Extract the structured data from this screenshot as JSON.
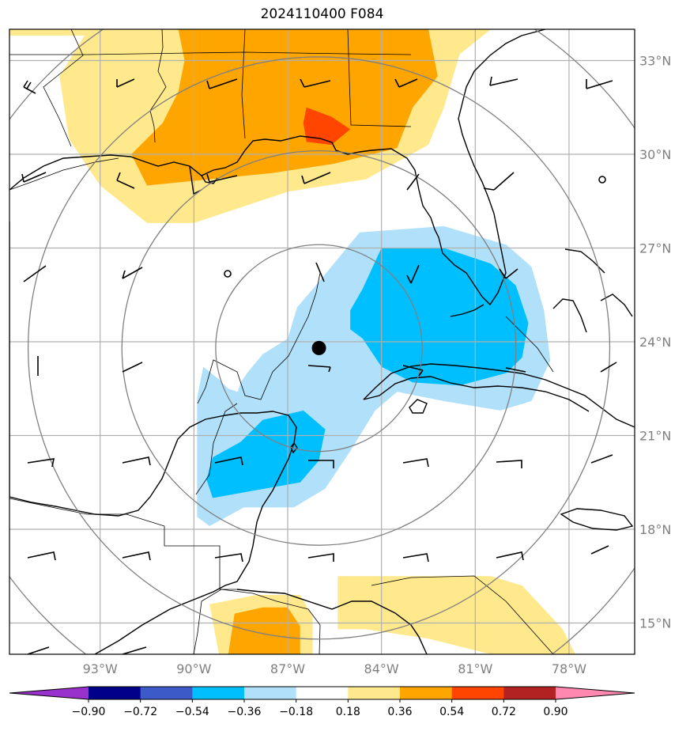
{
  "chart_data": {
    "type": "heatmap",
    "title": "2024110400 F084",
    "lon_ticks": [
      {
        "lon": -93,
        "label": "93°W"
      },
      {
        "lon": -90,
        "label": "90°W"
      },
      {
        "lon": -87,
        "label": "87°W"
      },
      {
        "lon": -84,
        "label": "84°W"
      },
      {
        "lon": -81,
        "label": "81°W"
      },
      {
        "lon": -78,
        "label": "78°W"
      }
    ],
    "lat_ticks": [
      {
        "lat": 33,
        "label": "33°N"
      },
      {
        "lat": 30,
        "label": "30°N"
      },
      {
        "lat": 27,
        "label": "27°N"
      },
      {
        "lat": 24,
        "label": "24°N"
      },
      {
        "lat": 21,
        "label": "21°N"
      },
      {
        "lat": 18,
        "label": "18°N"
      },
      {
        "lat": 15,
        "label": "15°N"
      }
    ],
    "extent": {
      "lon_min": -95.9,
      "lon_max": -75.9,
      "lat_min": 14.0,
      "lat_max": 34.0
    },
    "grid": true,
    "storm_center": {
      "lon": -86.0,
      "lat": 23.8
    },
    "range_rings_center": {
      "lon": -86.0,
      "lat": 23.8
    },
    "colorbar": {
      "boundaries": [
        -0.9,
        -0.72,
        -0.54,
        -0.36,
        -0.18,
        0.18,
        0.36,
        0.54,
        0.72,
        0.9
      ],
      "labels": [
        "−0.90",
        "−0.72",
        "−0.54",
        "−0.36",
        "−0.18",
        "0.18",
        "0.36",
        "0.54",
        "0.72",
        "0.90"
      ],
      "colors": [
        "#9932cc",
        "#00008b",
        "#3c5ac8",
        "#00bfff",
        "#b0e0fa",
        "#ffffff",
        "#ffe98c",
        "#ffa500",
        "#ff4500",
        "#b22222",
        "#ff88b0"
      ],
      "extend": "both"
    },
    "contours": [
      {
        "level": 0.18,
        "color": "#ffe98c",
        "polygons": [
          [
            [
              -95.9,
              34.0
            ],
            [
              -90.2,
              34.0
            ],
            [
              -90.2,
              33.5
            ],
            [
              -87.5,
              33.5
            ],
            [
              -83.5,
              34.0
            ],
            [
              -80.5,
              34.0
            ],
            [
              -81.5,
              33.2
            ],
            [
              -82.0,
              31.5
            ],
            [
              -82.5,
              30.3
            ],
            [
              -84.5,
              29.2
            ],
            [
              -87.0,
              28.8
            ],
            [
              -88.5,
              28.3
            ],
            [
              -90.0,
              27.8
            ],
            [
              -91.5,
              27.8
            ],
            [
              -93.0,
              29.0
            ],
            [
              -94.0,
              30.5
            ],
            [
              -94.3,
              32.5
            ],
            [
              -93.5,
              33.8
            ],
            [
              -95.9,
              33.8
            ]
          ],
          [
            [
              -89.2,
              14.0
            ],
            [
              -89.5,
              15.6
            ],
            [
              -88.0,
              15.9
            ],
            [
              -86.6,
              15.9
            ],
            [
              -86.2,
              15.2
            ],
            [
              -86.2,
              14.0
            ]
          ],
          [
            [
              -85.4,
              16.5
            ],
            [
              -84.8,
              16.5
            ],
            [
              -80.5,
              16.5
            ],
            [
              -79.5,
              16.2
            ],
            [
              -78.2,
              14.8
            ],
            [
              -77.8,
              14.0
            ],
            [
              -80.5,
              14.0
            ],
            [
              -82.5,
              14.5
            ],
            [
              -84.5,
              14.8
            ],
            [
              -85.4,
              14.8
            ]
          ]
        ]
      },
      {
        "level": 0.36,
        "color": "#ffa500",
        "polygons": [
          [
            [
              -90.5,
              34.0
            ],
            [
              -82.5,
              34.0
            ],
            [
              -82.2,
              32.5
            ],
            [
              -83.0,
              31.5
            ],
            [
              -83.5,
              30.2
            ],
            [
              -85.5,
              29.7
            ],
            [
              -87.5,
              29.4
            ],
            [
              -89.5,
              29.2
            ],
            [
              -91.5,
              29.0
            ],
            [
              -92.0,
              30.0
            ],
            [
              -91.0,
              31.0
            ],
            [
              -90.5,
              32.0
            ],
            [
              -90.3,
              33.0
            ]
          ],
          [
            [
              -88.9,
              14.0
            ],
            [
              -88.7,
              15.3
            ],
            [
              -87.8,
              15.5
            ],
            [
              -87.0,
              15.5
            ],
            [
              -86.6,
              14.9
            ],
            [
              -86.6,
              14.0
            ]
          ]
        ]
      },
      {
        "level": 0.54,
        "color": "#ff4500",
        "polygons": [
          [
            [
              -86.4,
              31.5
            ],
            [
              -85.6,
              31.2
            ],
            [
              -85.0,
              30.8
            ],
            [
              -85.6,
              30.3
            ],
            [
              -86.4,
              30.4
            ],
            [
              -86.5,
              31.0
            ]
          ]
        ]
      },
      {
        "level": -0.18,
        "color": "#b0e0fa",
        "polygons": [
          [
            [
              -84.7,
              27.5
            ],
            [
              -82.0,
              27.7
            ],
            [
              -80.0,
              27.1
            ],
            [
              -79.2,
              26.4
            ],
            [
              -78.8,
              25.0
            ],
            [
              -78.6,
              23.4
            ],
            [
              -79.2,
              22.1
            ],
            [
              -80.2,
              21.8
            ],
            [
              -82.0,
              22.1
            ],
            [
              -83.5,
              22.4
            ],
            [
              -84.2,
              21.8
            ],
            [
              -85.0,
              20.5
            ],
            [
              -85.8,
              19.3
            ],
            [
              -86.8,
              18.7
            ],
            [
              -88.4,
              18.7
            ],
            [
              -89.5,
              18.1
            ],
            [
              -89.9,
              18.4
            ],
            [
              -89.9,
              20.0
            ],
            [
              -89.9,
              22.2
            ],
            [
              -89.7,
              23.2
            ],
            [
              -89.2,
              22.8
            ],
            [
              -88.9,
              22.5
            ],
            [
              -88.6,
              22.4
            ],
            [
              -88.5,
              22.7
            ],
            [
              -88.3,
              23.0
            ],
            [
              -87.8,
              23.6
            ],
            [
              -87.0,
              24.1
            ],
            [
              -86.7,
              25.1
            ],
            [
              -86.1,
              25.8
            ]
          ]
        ]
      },
      {
        "level": -0.36,
        "color": "#00bfff",
        "polygons": [
          [
            [
              -84.0,
              27.0
            ],
            [
              -82.0,
              27.0
            ],
            [
              -80.5,
              26.5
            ],
            [
              -79.7,
              25.8
            ],
            [
              -79.3,
              24.6
            ],
            [
              -79.5,
              23.5
            ],
            [
              -80.0,
              23.0
            ],
            [
              -81.5,
              22.6
            ],
            [
              -83.0,
              22.7
            ],
            [
              -84.0,
              23.2
            ],
            [
              -84.6,
              24.1
            ],
            [
              -85.0,
              24.4
            ],
            [
              -85.0,
              25.0
            ],
            [
              -84.6,
              25.7
            ]
          ],
          [
            [
              -87.8,
              21.5
            ],
            [
              -86.5,
              21.8
            ],
            [
              -85.8,
              21.2
            ],
            [
              -86.0,
              20.2
            ],
            [
              -86.6,
              19.5
            ],
            [
              -88.3,
              19.2
            ],
            [
              -89.4,
              19.0
            ],
            [
              -89.6,
              19.6
            ],
            [
              -89.4,
              20.3
            ],
            [
              -88.5,
              20.8
            ]
          ]
        ]
      }
    ]
  }
}
